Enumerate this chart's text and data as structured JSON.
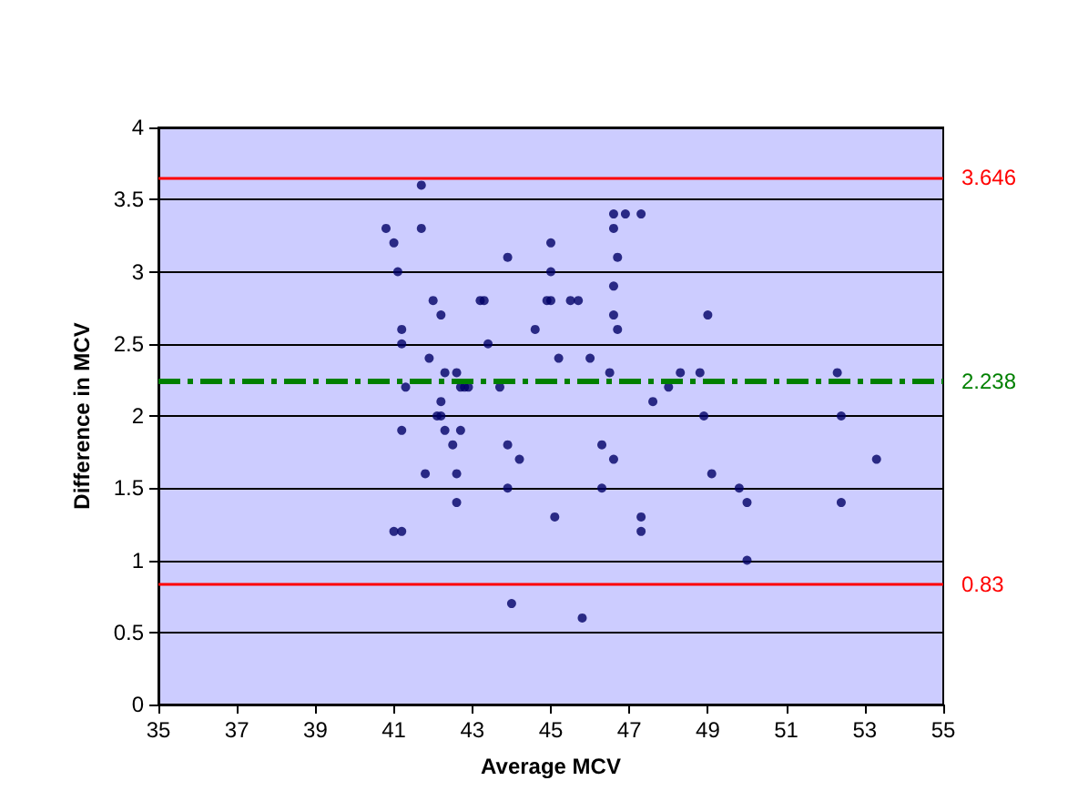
{
  "chart_data": {
    "type": "scatter",
    "xlabel": "Average MCV",
    "ylabel": "Difference in MCV",
    "x": [
      40.8,
      41.0,
      41.1,
      41.2,
      41.2,
      41.3,
      41.2,
      41.0,
      41.2,
      41.7,
      41.7,
      41.9,
      42.0,
      42.2,
      42.1,
      42.2,
      42.2,
      42.3,
      42.3,
      41.8,
      42.5,
      42.6,
      42.6,
      42.6,
      42.7,
      42.8,
      42.7,
      42.9,
      43.2,
      43.3,
      43.4,
      43.7,
      43.9,
      43.9,
      43.9,
      44.0,
      44.2,
      44.6,
      44.9,
      45.0,
      45.0,
      45.0,
      45.2,
      45.1,
      45.5,
      45.7,
      45.8,
      46.0,
      46.3,
      46.3,
      46.5,
      46.6,
      46.6,
      46.6,
      46.6,
      46.6,
      46.7,
      46.7,
      46.9,
      47.3,
      47.3,
      47.3,
      47.6,
      48.0,
      48.3,
      48.8,
      48.9,
      49.0,
      49.1,
      49.8,
      50.0,
      50.0,
      52.3,
      52.4,
      52.4,
      53.3
    ],
    "series": [
      {
        "color": "#000066",
        "values": [
          3.3,
          3.2,
          3.0,
          2.6,
          2.5,
          2.2,
          1.9,
          1.2,
          1.2,
          3.6,
          3.3,
          2.4,
          2.8,
          2.7,
          2.0,
          2.0,
          2.1,
          2.3,
          1.9,
          1.6,
          1.8,
          1.6,
          2.3,
          1.4,
          2.2,
          2.2,
          1.9,
          2.2,
          2.8,
          2.8,
          2.5,
          2.2,
          3.1,
          1.8,
          1.5,
          0.7,
          1.7,
          2.6,
          2.8,
          3.2,
          3.0,
          2.8,
          2.4,
          1.3,
          2.8,
          2.8,
          0.6,
          2.4,
          1.8,
          1.5,
          2.3,
          1.7,
          2.7,
          2.9,
          3.3,
          3.4,
          3.1,
          2.6,
          3.4,
          3.4,
          1.3,
          1.2,
          2.1,
          2.2,
          2.3,
          2.3,
          2.0,
          2.7,
          1.6,
          1.5,
          1.4,
          1.0,
          2.3,
          2.0,
          1.4,
          1.7
        ]
      }
    ],
    "xlim": [
      35,
      55
    ],
    "xticks": [
      35,
      37,
      39,
      41,
      43,
      45,
      47,
      49,
      51,
      53,
      55
    ],
    "ylim": [
      0,
      4
    ],
    "yticks": [
      0,
      0.5,
      1,
      1.5,
      2,
      2.5,
      3,
      3.5,
      4
    ],
    "grid": "y",
    "marker": "circle",
    "ref_lines": [
      {
        "axis": "y",
        "value": 3.646,
        "label": "3.646",
        "color": "#ff0000",
        "line_style": "solid"
      },
      {
        "axis": "y",
        "value": 2.238,
        "label": "2.238",
        "color": "#008000",
        "line_style": "dashed"
      },
      {
        "axis": "y",
        "value": 0.83,
        "label": "0.83",
        "color": "#ff0000",
        "line_style": "solid"
      }
    ]
  }
}
